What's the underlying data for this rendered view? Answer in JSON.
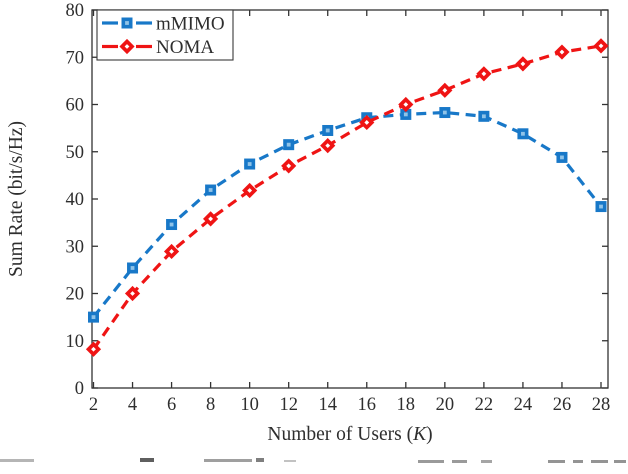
{
  "figure": {
    "background": "#ffffff",
    "axis_color": "#333333",
    "text_color": "#2e2e2e",
    "legend_border_color": "#3a3a3a",
    "caption_clipped": true
  },
  "chart_data": {
    "type": "line",
    "title": "",
    "xlabel": "Number of Users (K)",
    "ylabel": "Sum Rate (bit/s/Hz)",
    "x": [
      2,
      4,
      6,
      8,
      10,
      12,
      14,
      16,
      18,
      20,
      22,
      24,
      26,
      28
    ],
    "series": [
      {
        "name": "mMIMO",
        "color": "#1878c8",
        "marker": "square",
        "marker_center": "#8fc3e8",
        "linestyle": "dashed",
        "values": [
          15.0,
          25.4,
          34.6,
          41.9,
          47.4,
          51.5,
          54.5,
          57.2,
          57.9,
          58.3,
          57.5,
          53.8,
          48.8,
          38.4
        ]
      },
      {
        "name": "NOMA",
        "color": "#ef1414",
        "marker": "diamond",
        "marker_center": "#ffffff",
        "linestyle": "dashed",
        "values": [
          8.2,
          20.0,
          28.9,
          35.8,
          41.8,
          47.0,
          51.3,
          56.2,
          60.0,
          63.0,
          66.5,
          68.6,
          71.1,
          72.4
        ]
      }
    ],
    "xlim": [
      2,
      28
    ],
    "ylim": [
      0,
      80
    ],
    "xticks": [
      2,
      4,
      6,
      8,
      10,
      12,
      14,
      16,
      18,
      20,
      22,
      24,
      26,
      28
    ],
    "yticks": [
      0,
      10,
      20,
      30,
      40,
      50,
      60,
      70,
      80
    ],
    "grid": false,
    "legend_position": "top-left"
  }
}
